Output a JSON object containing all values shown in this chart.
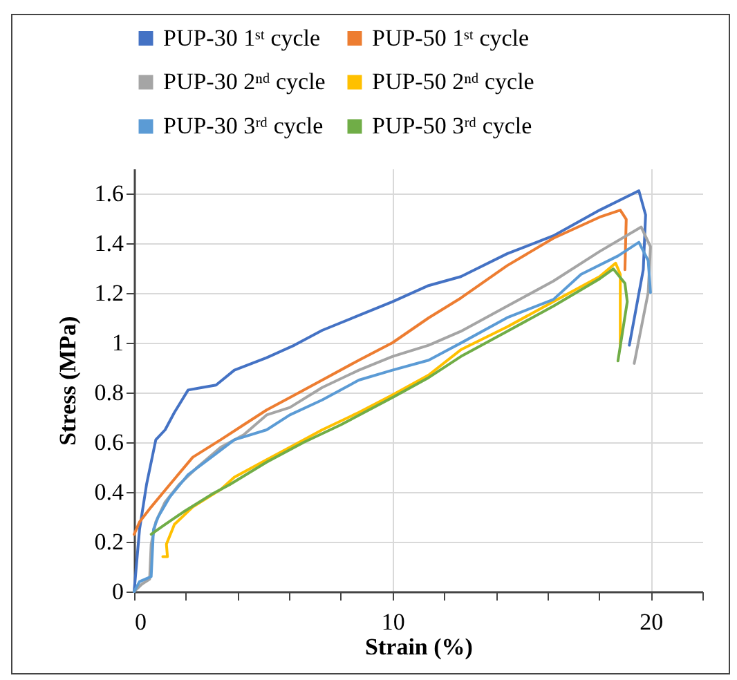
{
  "chart_data": {
    "type": "line",
    "xlabel": "Strain (%)",
    "ylabel": "Stress (MPa)",
    "xlim": [
      0,
      22
    ],
    "ylim": [
      0,
      1.7
    ],
    "xticks": [
      0,
      {
        "value": 2,
        "label": null
      },
      {
        "value": 4,
        "label": null
      },
      {
        "value": 6,
        "label": null
      },
      {
        "value": 8,
        "label": null
      },
      10,
      {
        "value": 12,
        "label": null
      },
      {
        "value": 14,
        "label": null
      },
      {
        "value": 16,
        "label": null
      },
      {
        "value": 18,
        "label": null
      },
      20,
      {
        "value": 22,
        "label": null
      }
    ],
    "yticks": [
      0,
      0.2,
      0.4,
      0.6,
      0.8,
      1,
      1.2,
      1.4,
      1.6
    ],
    "grid": true,
    "legend": "top",
    "line_style": "solid",
    "series": [
      {
        "name": "PUP-30 1ˢᵗ cycle",
        "color": "#4472c4",
        "x": [
          0,
          0.21,
          0.48,
          0.84,
          1.2,
          1.56,
          2.09,
          2.63,
          3.17,
          3.88,
          5.13,
          6.2,
          7.28,
          8.7,
          10,
          11.4,
          12.65,
          14.44,
          16.23,
          18.02,
          19.54,
          19.8,
          19.71,
          19.17
        ],
        "values": [
          0,
          0.25,
          0.43,
          0.61,
          0.65,
          0.72,
          0.81,
          0.82,
          0.83,
          0.89,
          0.94,
          0.99,
          1.05,
          1.11,
          1.165,
          1.23,
          1.266,
          1.358,
          1.43,
          1.533,
          1.611,
          1.514,
          1.294,
          0.99
        ]
      },
      {
        "name": "PUP-50 1ˢᵗ cycle",
        "color": "#ed7d31",
        "x": [
          0,
          0.21,
          0.66,
          1.38,
          2.27,
          3.35,
          4.24,
          5.13,
          6.03,
          7.28,
          8.7,
          10,
          11.4,
          12.65,
          14.44,
          16.23,
          18.02,
          18.82,
          19.05,
          19.0
        ],
        "values": [
          0.23,
          0.28,
          0.34,
          0.43,
          0.54,
          0.61,
          0.67,
          0.73,
          0.78,
          0.85,
          0.93,
          1.0,
          1.1,
          1.18,
          1.31,
          1.42,
          1.505,
          1.533,
          1.496,
          1.294
        ]
      },
      {
        "name": "PUP-30 2ⁿᵈ cycle",
        "color": "#a5a5a5",
        "x": [
          0,
          0.3,
          0.6,
          0.66,
          0.84,
          1.2,
          1.74,
          2.45,
          3.35,
          4.24,
          5.13,
          6.03,
          7.28,
          8.7,
          10,
          11.4,
          12.65,
          14.44,
          16.23,
          18.02,
          19.63,
          19.99,
          19.9,
          19.36
        ],
        "values": [
          0,
          0.03,
          0.05,
          0.19,
          0.28,
          0.36,
          0.43,
          0.5,
          0.58,
          0.63,
          0.71,
          0.74,
          0.82,
          0.89,
          0.945,
          0.99,
          1.046,
          1.147,
          1.248,
          1.367,
          1.465,
          1.386,
          1.202,
          0.917
        ]
      },
      {
        "name": "PUP-50 2ⁿᵈ cycle",
        "color": "#ffc000",
        "x": [
          1.11,
          1.29,
          1.25,
          1.56,
          2.27,
          3.35,
          3.88,
          5.13,
          6.03,
          7.28,
          8.7,
          10,
          11.4,
          12.65,
          14.44,
          16.23,
          18.02,
          18.64,
          18.82,
          18.82
        ],
        "values": [
          0.14,
          0.14,
          0.19,
          0.27,
          0.34,
          0.41,
          0.46,
          0.53,
          0.58,
          0.65,
          0.72,
          0.79,
          0.87,
          0.972,
          1.064,
          1.165,
          1.266,
          1.32,
          1.275,
          0.982
        ]
      },
      {
        "name": "PUP-30 3ʳᵈ cycle",
        "color": "#5b9bd5",
        "x": [
          0,
          0.21,
          0.66,
          0.75,
          0.93,
          1.38,
          2.09,
          2.99,
          3.88,
          5.13,
          6.03,
          7.28,
          8.7,
          10,
          11.4,
          12.65,
          14.44,
          16.23,
          17.3,
          18.73,
          19.54,
          19.9,
          19.99
        ],
        "values": [
          0,
          0.04,
          0.06,
          0.25,
          0.3,
          0.38,
          0.47,
          0.54,
          0.61,
          0.65,
          0.71,
          0.77,
          0.85,
          0.89,
          0.93,
          0.999,
          1.101,
          1.174,
          1.275,
          1.349,
          1.404,
          1.33,
          1.202
        ]
      },
      {
        "name": "PUP-50 3ʳᵈ cycle",
        "color": "#70ad47",
        "x": [
          0.66,
          1.2,
          1.91,
          2.99,
          3.7,
          5.13,
          6.57,
          8.0,
          10,
          11.4,
          12.65,
          14.44,
          16.23,
          18.02,
          18.55,
          19.0,
          19.09,
          18.73
        ],
        "values": [
          0.23,
          0.27,
          0.32,
          0.39,
          0.43,
          0.52,
          0.6,
          0.67,
          0.78,
          0.86,
          0.945,
          1.046,
          1.147,
          1.257,
          1.297,
          1.239,
          1.165,
          0.927
        ]
      }
    ]
  }
}
